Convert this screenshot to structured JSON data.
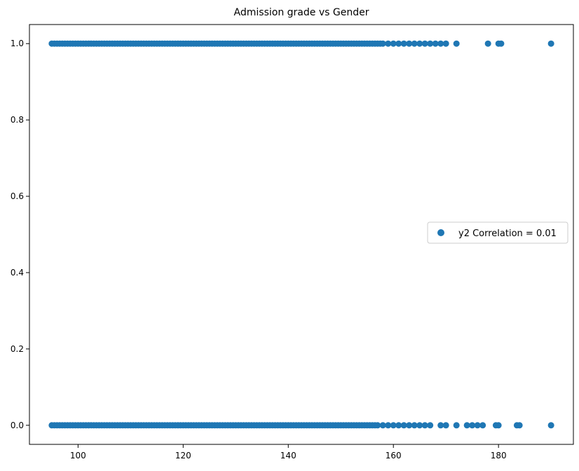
{
  "chart_data": {
    "type": "scatter",
    "title": "Admission grade vs Gender",
    "xlabel": "",
    "ylabel": "",
    "xlim": [
      90.75,
      194.25
    ],
    "ylim": [
      -0.05,
      1.05
    ],
    "xticks": [
      100,
      120,
      140,
      160,
      180
    ],
    "yticks": [
      0.0,
      0.2,
      0.4,
      0.6,
      0.8,
      1.0
    ],
    "xtick_labels": [
      "100",
      "120",
      "140",
      "160",
      "180"
    ],
    "ytick_labels": [
      "0.0",
      "0.2",
      "0.4",
      "0.6",
      "0.8",
      "1.0"
    ],
    "grid": false,
    "legend": {
      "position": "right",
      "entries": [
        "y2 Correlation = 0.01"
      ]
    },
    "series": [
      {
        "name": "y2 Correlation = 0.01",
        "color": "#1f77b4",
        "points_y1_dense_range": [
          95,
          158
        ],
        "points_y1_sparse": [
          159,
          160,
          161,
          162,
          163,
          164,
          165,
          166,
          167,
          168,
          169,
          170,
          172,
          178,
          180,
          180.5,
          190
        ],
        "points_y0_dense_range": [
          95,
          157
        ],
        "points_y0_sparse": [
          158,
          159,
          160,
          161,
          162,
          163,
          164,
          165,
          166,
          167,
          169,
          170,
          172,
          174,
          175,
          176,
          177,
          179.5,
          180,
          183.5,
          184,
          190
        ]
      }
    ]
  }
}
